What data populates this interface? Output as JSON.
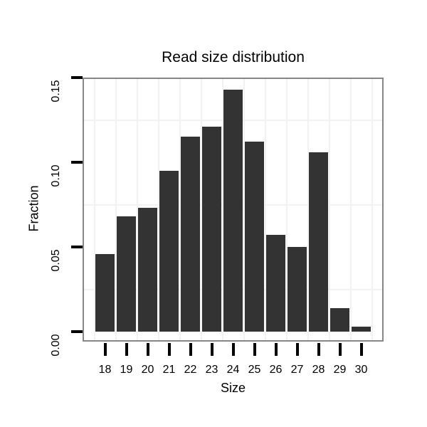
{
  "chart_data": {
    "type": "bar",
    "title": "Read size distribution",
    "xlabel": "Size",
    "ylabel": "Fraction",
    "categories": [
      18,
      19,
      20,
      21,
      22,
      23,
      24,
      25,
      26,
      27,
      28,
      29,
      30
    ],
    "values": [
      0.046,
      0.068,
      0.073,
      0.095,
      0.115,
      0.121,
      0.143,
      0.112,
      0.057,
      0.05,
      0.106,
      0.014,
      0.003
    ],
    "y_ticks": [
      0.0,
      0.05,
      0.1,
      0.15
    ],
    "y_tick_labels": [
      "0.00",
      "0.05",
      "0.10",
      "0.15"
    ],
    "ylim": [
      -0.005,
      0.149
    ],
    "grid": "minor-only",
    "minor_y_gridlines": [
      0.025,
      0.075,
      0.125
    ],
    "minor_x_gridlines": [
      17.5,
      18.5,
      19.5,
      20.5,
      21.5,
      22.5,
      23.5,
      24.5,
      25.5,
      26.5,
      27.5,
      28.5,
      29.5,
      30.5
    ],
    "legend": "none",
    "colors": {
      "bar": "#333333",
      "panel_border": "#878787",
      "gridline": "#f2f2f2",
      "text": "#000000",
      "background": "#ffffff"
    }
  }
}
